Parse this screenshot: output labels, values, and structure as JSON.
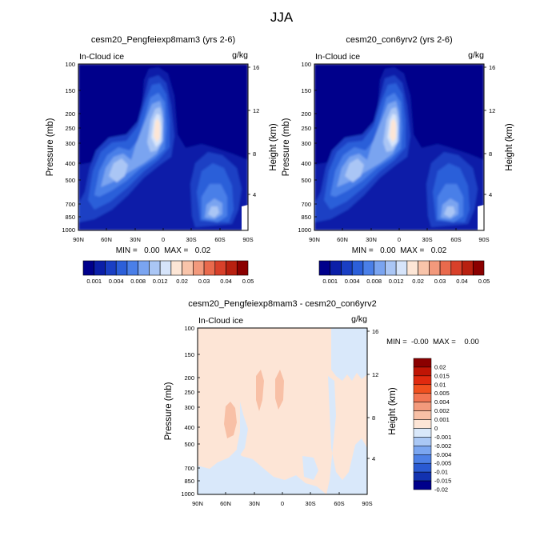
{
  "figure": {
    "title": "JJA"
  },
  "chart_data": [
    {
      "type": "heatmap",
      "title": "cesm20_Pengfeiexp8mam3 (yrs 2-6)",
      "left_label": "In-Cloud ice",
      "right_label": "g/kg",
      "ylabel": "Pressure (mb)",
      "y2label": "Height (km)",
      "x_ticks": [
        "90N",
        "60N",
        "30N",
        "0",
        "30S",
        "60S",
        "90S"
      ],
      "y_ticks": [
        "100",
        "150",
        "200",
        "250",
        "300",
        "400",
        "500",
        "700",
        "850",
        "1000"
      ],
      "y2_ticks": [
        "16",
        "12",
        "8",
        "4"
      ],
      "min_max": "MIN =   0.00  MAX =   0.02",
      "xlim": [
        90,
        -90
      ],
      "ylim": [
        1000,
        100
      ]
    },
    {
      "type": "heatmap",
      "title": "cesm20_con6yrv2 (yrs 2-6)",
      "left_label": "In-Cloud ice",
      "right_label": "g/kg",
      "ylabel": "Pressure (mb)",
      "y2label": "Height (km)",
      "x_ticks": [
        "90N",
        "60N",
        "30N",
        "0",
        "30S",
        "60S",
        "90S"
      ],
      "y_ticks": [
        "100",
        "150",
        "200",
        "250",
        "300",
        "400",
        "500",
        "700",
        "850",
        "1000"
      ],
      "y2_ticks": [
        "16",
        "12",
        "8",
        "4"
      ],
      "min_max": "MIN =   0.00  MAX =   0.02",
      "xlim": [
        90,
        -90
      ],
      "ylim": [
        1000,
        100
      ]
    },
    {
      "type": "heatmap",
      "title": "cesm20_Pengfeiexp8mam3 - cesm20_con6yrv2",
      "left_label": "In-Cloud ice",
      "right_label": "g/kg",
      "ylabel": "Pressure (mb)",
      "y2label": "Height (km)",
      "x_ticks": [
        "90N",
        "60N",
        "30N",
        "0",
        "30S",
        "60S",
        "90S"
      ],
      "y_ticks": [
        "100",
        "150",
        "200",
        "250",
        "300",
        "400",
        "500",
        "700",
        "850",
        "1000"
      ],
      "y2_ticks": [
        "16",
        "12",
        "8",
        "4"
      ],
      "min_max": "MIN =  -0.00  MAX =    0.00",
      "xlim": [
        90,
        -90
      ],
      "ylim": [
        1000,
        100
      ]
    }
  ],
  "colorbar_top": {
    "labels": [
      "0.001",
      "0.004",
      "0.008",
      "0.012",
      "0.02",
      "0.03",
      "0.04",
      "0.05"
    ],
    "colors": [
      "#00008b",
      "#0b1fa8",
      "#1a3fc4",
      "#2c5fd9",
      "#4a7fe8",
      "#7aa4f0",
      "#aac6f5",
      "#d6e4fa",
      "#fde6d6",
      "#f8c4aa",
      "#f2997c",
      "#e96a4d",
      "#d8402a",
      "#b82010",
      "#8b0000"
    ]
  },
  "colorbar_diff": {
    "labels": [
      "0.02",
      "0.015",
      "0.01",
      "0.005",
      "0.004",
      "0.002",
      "0.001",
      "0",
      "-0.001",
      "-0.002",
      "-0.004",
      "-0.005",
      "-0.01",
      "-0.015",
      "-0.02"
    ],
    "colors": [
      "#8b0000",
      "#c01505",
      "#e02a0f",
      "#f0501f",
      "#f27553",
      "#f39a7c",
      "#f8c0a6",
      "#fde5d6",
      "#d9e8fa",
      "#aac8f5",
      "#7ba6f0",
      "#4d80e6",
      "#2a5ad2",
      "#1232b0",
      "#00008b"
    ]
  }
}
